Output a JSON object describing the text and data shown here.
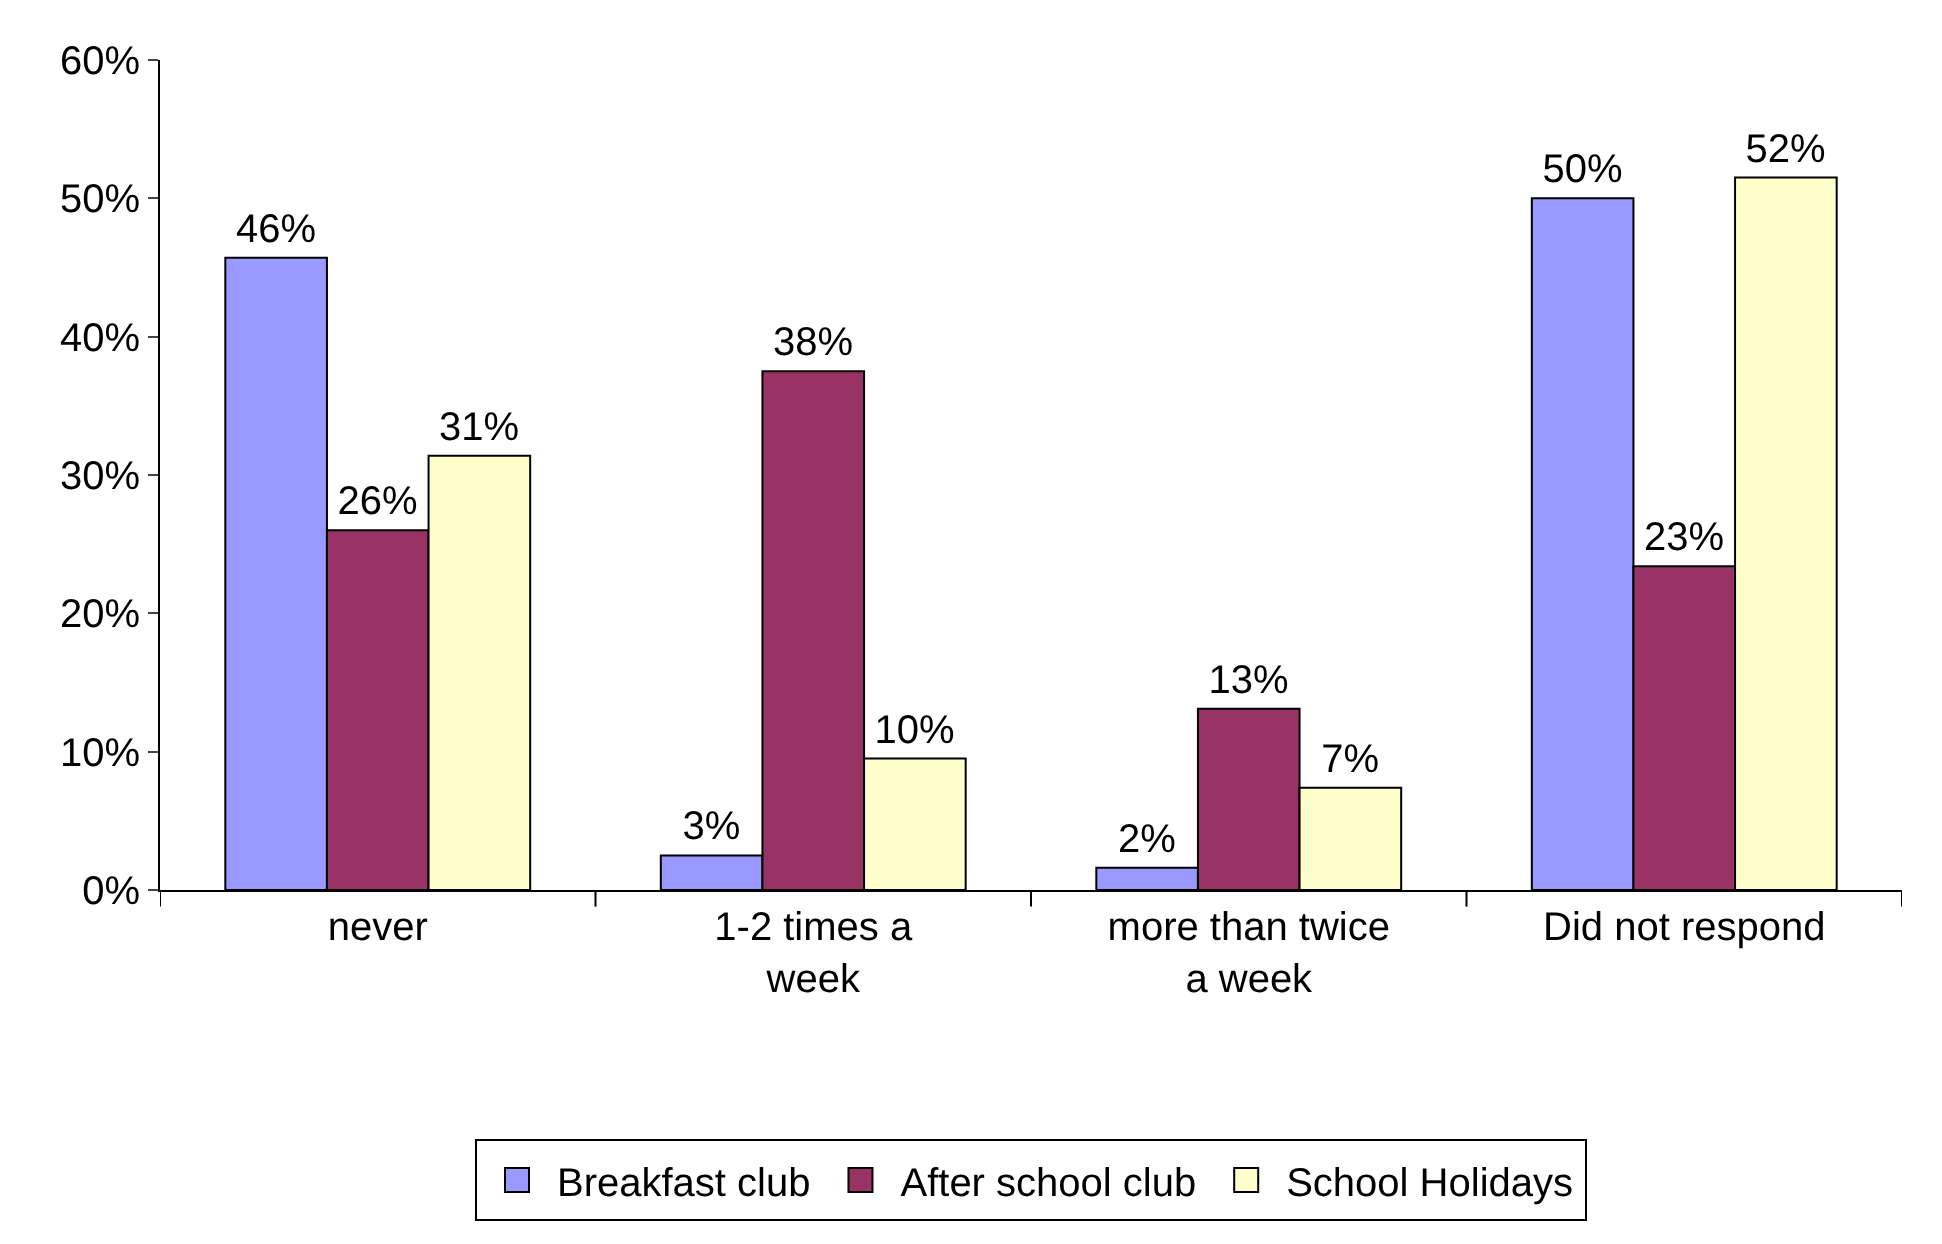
{
  "chart_data": {
    "type": "bar",
    "categories": [
      "never",
      "1-2 times a week",
      "more than twice a week",
      "Did not respond"
    ],
    "series": [
      {
        "name": "Breakfast club",
        "color": "#9999ff",
        "values": [
          45.7,
          2.5,
          1.6,
          50
        ],
        "value_labels": [
          "46%",
          "3%",
          "2%",
          "50%"
        ]
      },
      {
        "name": "After school club",
        "color": "#993366",
        "values": [
          26,
          37.5,
          13.1,
          23.4
        ],
        "value_labels": [
          "26%",
          "38%",
          "13%",
          "23%"
        ]
      },
      {
        "name": "School Holidays",
        "color": "#ffffcc",
        "values": [
          31.4,
          9.5,
          7.4,
          51.5
        ],
        "value_labels": [
          "31%",
          "10%",
          "7%",
          "52%"
        ]
      }
    ],
    "ylim": [
      0,
      60
    ],
    "yticks": [
      {
        "value": 0,
        "label": "0%"
      },
      {
        "value": 10,
        "label": "10%"
      },
      {
        "value": 20,
        "label": "20%"
      },
      {
        "value": 30,
        "label": "30%"
      },
      {
        "value": 40,
        "label": "40%"
      },
      {
        "value": 50,
        "label": "50%"
      },
      {
        "value": 60,
        "label": "60%"
      }
    ],
    "legend": "bottom"
  }
}
